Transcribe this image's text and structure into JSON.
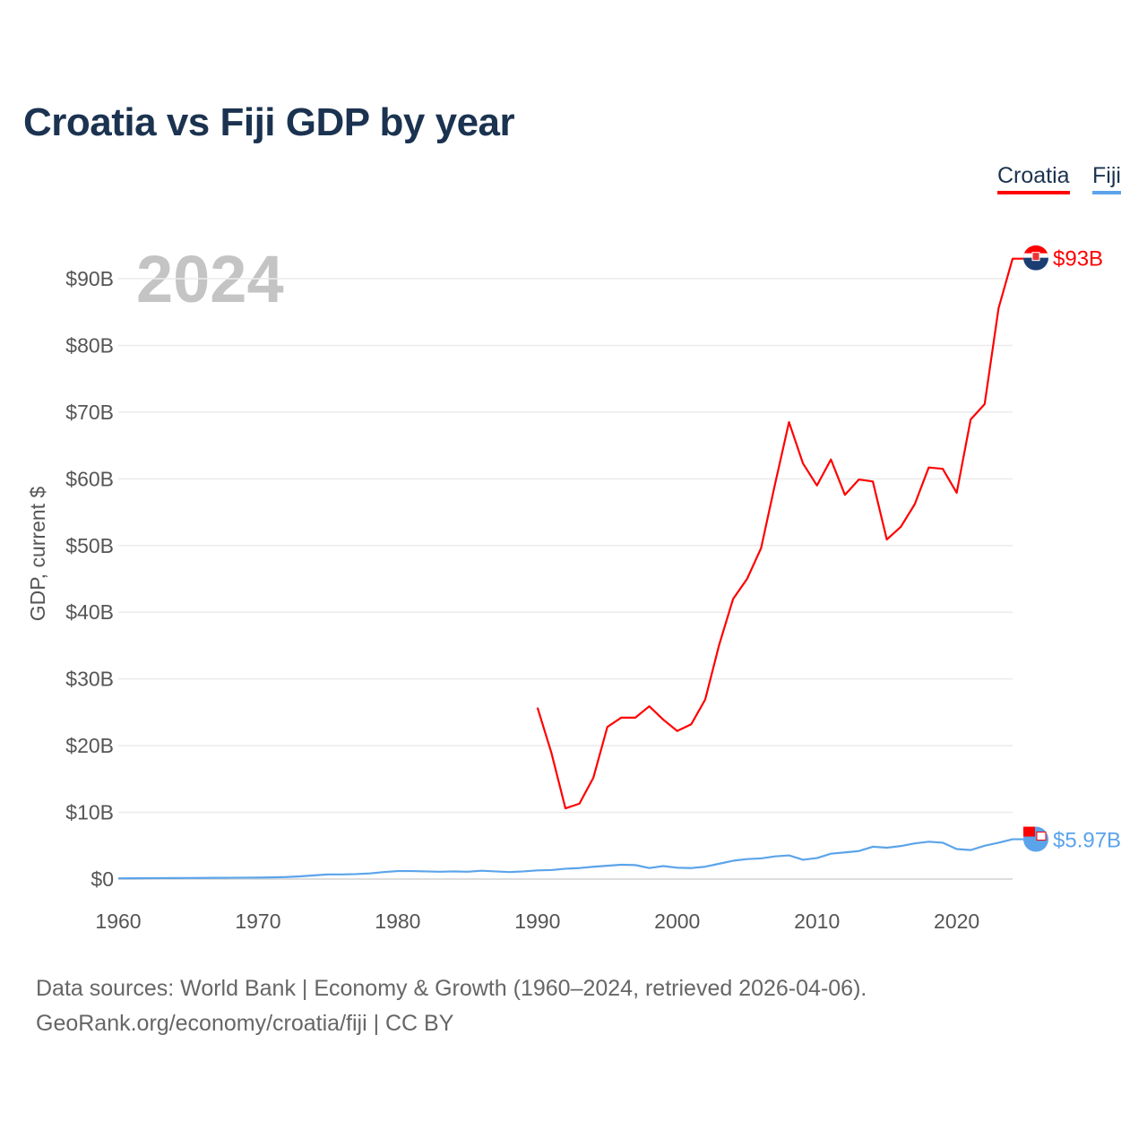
{
  "title": "Croatia vs Fiji GDP by year",
  "year_label": "2024",
  "source_line1": "Data sources: World Bank | Economy & Growth (1960–2024, retrieved 2026-04-06).",
  "source_line2": "GeoRank.org/economy/croatia/fiji | CC BY",
  "chart_data": {
    "type": "line",
    "title": "Croatia vs Fiji GDP by year",
    "xlabel": "",
    "ylabel": "GDP, current $",
    "xlim": [
      1960,
      2024
    ],
    "ylim": [
      0,
      90
    ],
    "xticks": [
      1960,
      1970,
      1980,
      1990,
      2000,
      2010,
      2020
    ],
    "xtick_labels": [
      "1960",
      "1970",
      "1980",
      "1990",
      "2000",
      "2010",
      "2020"
    ],
    "yticks": [
      0,
      10,
      20,
      30,
      40,
      50,
      60,
      70,
      80,
      90
    ],
    "ytick_labels": [
      "$0",
      "$10B",
      "$20B",
      "$30B",
      "$40B",
      "$50B",
      "$60B",
      "$70B",
      "$80B",
      "$90B"
    ],
    "grid": true,
    "legend_position": "top-right",
    "x_start": 1960,
    "series": [
      {
        "name": "Croatia",
        "color": "#ff0000",
        "end_label": "$93B",
        "start_year": 1990,
        "values": [
          25.7,
          18.9,
          10.6,
          11.3,
          15.2,
          22.8,
          24.2,
          24.2,
          25.9,
          23.9,
          22.2,
          23.2,
          26.9,
          35.1,
          42.0,
          45.0,
          49.6,
          59.2,
          68.5,
          62.3,
          59.0,
          62.9,
          57.6,
          59.9,
          59.6,
          50.9,
          52.8,
          56.2,
          61.7,
          61.5,
          57.9,
          68.9,
          71.2,
          85.6,
          93.0
        ]
      },
      {
        "name": "Fiji",
        "color": "#5ba4ea",
        "end_label": "$5.97B",
        "start_year": 1960,
        "values": [
          0.11,
          0.12,
          0.13,
          0.14,
          0.15,
          0.16,
          0.17,
          0.18,
          0.19,
          0.21,
          0.22,
          0.25,
          0.3,
          0.4,
          0.55,
          0.7,
          0.7,
          0.75,
          0.85,
          1.05,
          1.2,
          1.2,
          1.15,
          1.1,
          1.15,
          1.1,
          1.25,
          1.15,
          1.05,
          1.15,
          1.3,
          1.35,
          1.55,
          1.65,
          1.85,
          2.0,
          2.15,
          2.1,
          1.65,
          1.95,
          1.7,
          1.65,
          1.85,
          2.3,
          2.75,
          3.0,
          3.1,
          3.4,
          3.55,
          2.9,
          3.15,
          3.8,
          4.0,
          4.2,
          4.85,
          4.7,
          4.95,
          5.35,
          5.6,
          5.45,
          4.5,
          4.35,
          5.0,
          5.45,
          5.97
        ]
      }
    ]
  }
}
